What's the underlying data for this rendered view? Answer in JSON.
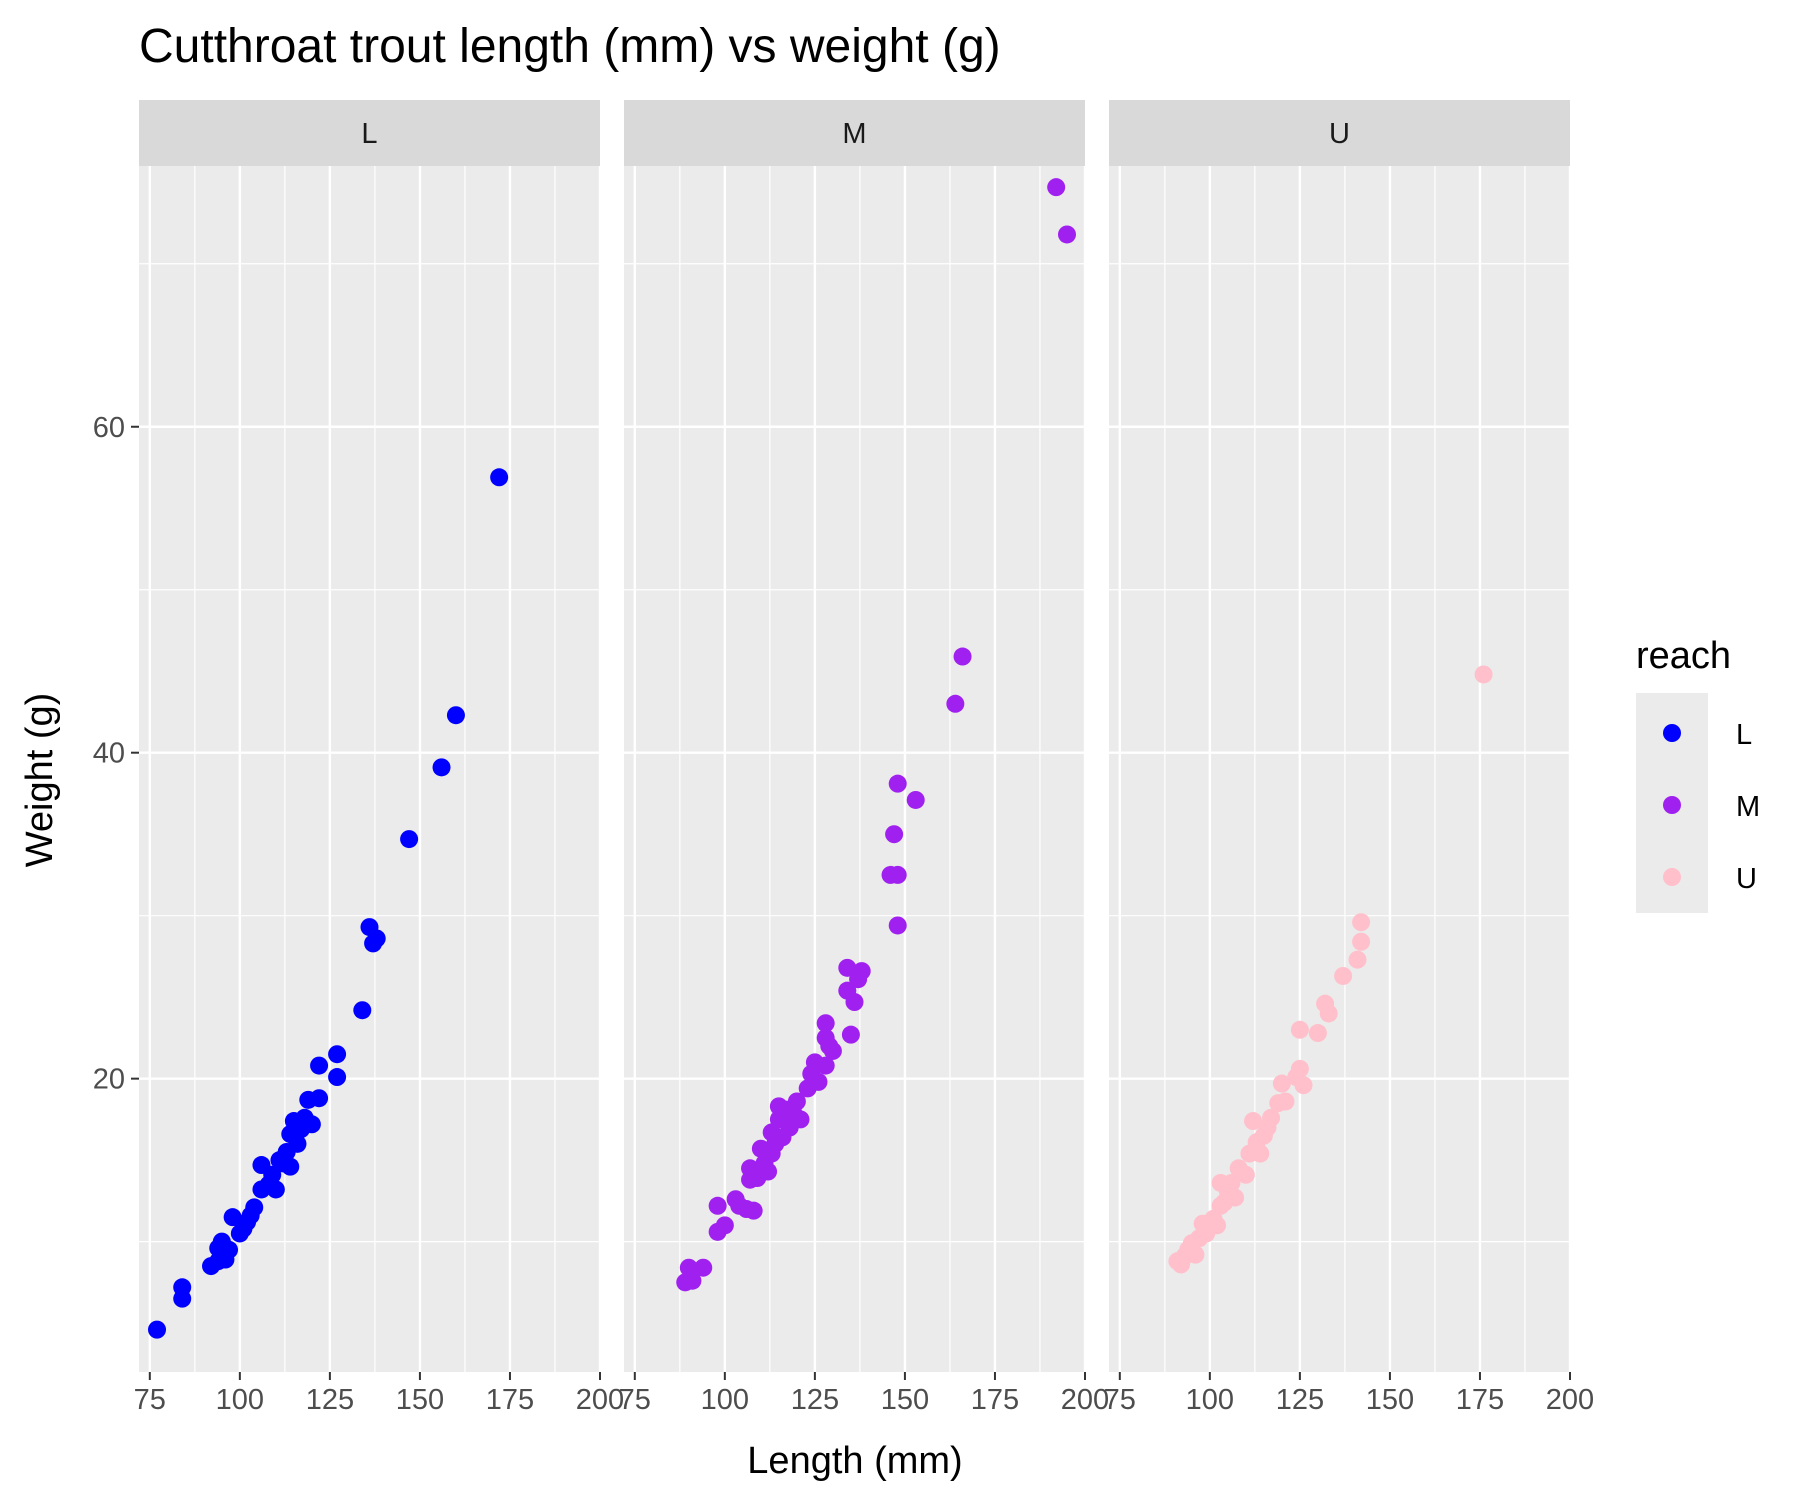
{
  "chart_data": {
    "type": "scatter",
    "title": "Cutthroat trout length (mm) vs weight (g)",
    "xlabel": "Length (mm)",
    "ylabel": "Weight (g)",
    "xlim": [
      72,
      200
    ],
    "ylim": [
      2,
      76
    ],
    "x_ticks": [
      75,
      100,
      125,
      150,
      175,
      200
    ],
    "y_ticks": [
      20,
      40,
      60
    ],
    "grid": true,
    "legend": {
      "title": "reach",
      "position": "right",
      "entries": [
        {
          "label": "L",
          "color": "#0000ff"
        },
        {
          "label": "M",
          "color": "#a020f0"
        },
        {
          "label": "U",
          "color": "#ffc0cb"
        }
      ]
    },
    "series": [
      {
        "name": "L",
        "facet": "L",
        "color": "#0000ff",
        "points": [
          [
            77,
            4.6
          ],
          [
            84,
            6.5
          ],
          [
            84,
            7.2
          ],
          [
            92,
            8.5
          ],
          [
            94,
            8.8
          ],
          [
            94,
            9.6
          ],
          [
            95,
            10.0
          ],
          [
            96,
            8.9
          ],
          [
            97,
            9.5
          ],
          [
            98,
            11.5
          ],
          [
            100,
            10.5
          ],
          [
            101,
            10.8
          ],
          [
            102,
            11.2
          ],
          [
            103,
            11.6
          ],
          [
            104,
            12.1
          ],
          [
            106,
            13.2
          ],
          [
            106,
            14.7
          ],
          [
            108,
            13.5
          ],
          [
            109,
            14.1
          ],
          [
            110,
            13.2
          ],
          [
            111,
            15.0
          ],
          [
            112,
            14.8
          ],
          [
            113,
            15.5
          ],
          [
            114,
            16.6
          ],
          [
            114,
            14.6
          ],
          [
            115,
            17.4
          ],
          [
            116,
            16.0
          ],
          [
            117,
            16.9
          ],
          [
            118,
            17.6
          ],
          [
            119,
            18.7
          ],
          [
            120,
            17.2
          ],
          [
            122,
            18.8
          ],
          [
            122,
            20.8
          ],
          [
            127,
            20.1
          ],
          [
            127,
            21.5
          ],
          [
            134,
            24.2
          ],
          [
            136,
            29.3
          ],
          [
            137,
            28.3
          ],
          [
            138,
            28.6
          ],
          [
            147,
            34.7
          ],
          [
            156,
            39.1
          ],
          [
            160,
            42.3
          ],
          [
            172,
            56.9
          ]
        ]
      },
      {
        "name": "M",
        "facet": "M",
        "color": "#a020f0",
        "points": [
          [
            89,
            7.5
          ],
          [
            90,
            8.4
          ],
          [
            91,
            7.6
          ],
          [
            94,
            8.4
          ],
          [
            98,
            10.6
          ],
          [
            98,
            12.2
          ],
          [
            100,
            11.0
          ],
          [
            103,
            12.6
          ],
          [
            104,
            12.2
          ],
          [
            106,
            12.0
          ],
          [
            107,
            13.8
          ],
          [
            107,
            14.5
          ],
          [
            108,
            11.9
          ],
          [
            109,
            13.9
          ],
          [
            110,
            15.7
          ],
          [
            111,
            14.8
          ],
          [
            112,
            14.3
          ],
          [
            113,
            15.4
          ],
          [
            113,
            16.7
          ],
          [
            114,
            16.0
          ],
          [
            115,
            17.5
          ],
          [
            115,
            18.3
          ],
          [
            116,
            16.4
          ],
          [
            117,
            18.1
          ],
          [
            118,
            17.0
          ],
          [
            119,
            17.9
          ],
          [
            120,
            18.6
          ],
          [
            121,
            17.5
          ],
          [
            123,
            19.4
          ],
          [
            124,
            20.3
          ],
          [
            125,
            21.0
          ],
          [
            126,
            19.8
          ],
          [
            128,
            20.8
          ],
          [
            128,
            22.5
          ],
          [
            128,
            23.4
          ],
          [
            129,
            22.0
          ],
          [
            130,
            21.7
          ],
          [
            134,
            26.8
          ],
          [
            134,
            25.4
          ],
          [
            135,
            22.7
          ],
          [
            136,
            24.7
          ],
          [
            137,
            26.1
          ],
          [
            138,
            26.6
          ],
          [
            146,
            32.5
          ],
          [
            147,
            35.0
          ],
          [
            148,
            38.1
          ],
          [
            148,
            32.5
          ],
          [
            148,
            29.4
          ],
          [
            153,
            37.1
          ],
          [
            164,
            43.0
          ],
          [
            166,
            45.9
          ],
          [
            192,
            74.7
          ],
          [
            195,
            71.8
          ]
        ]
      },
      {
        "name": "U",
        "facet": "U",
        "color": "#ffc0cb",
        "points": [
          [
            91,
            8.8
          ],
          [
            92,
            8.6
          ],
          [
            93,
            9.1
          ],
          [
            94,
            9.5
          ],
          [
            95,
            9.9
          ],
          [
            96,
            9.2
          ],
          [
            97,
            10.2
          ],
          [
            98,
            11.1
          ],
          [
            99,
            10.5
          ],
          [
            100,
            10.9
          ],
          [
            101,
            11.4
          ],
          [
            102,
            11.0
          ],
          [
            103,
            12.2
          ],
          [
            103,
            13.6
          ],
          [
            104,
            12.4
          ],
          [
            105,
            13.1
          ],
          [
            106,
            13.6
          ],
          [
            107,
            12.7
          ],
          [
            108,
            14.5
          ],
          [
            110,
            14.1
          ],
          [
            111,
            15.4
          ],
          [
            112,
            17.4
          ],
          [
            113,
            16.1
          ],
          [
            114,
            15.4
          ],
          [
            115,
            16.5
          ],
          [
            116,
            17.0
          ],
          [
            117,
            17.6
          ],
          [
            119,
            18.5
          ],
          [
            120,
            19.7
          ],
          [
            121,
            18.6
          ],
          [
            124,
            20.1
          ],
          [
            125,
            23.0
          ],
          [
            125,
            20.6
          ],
          [
            126,
            19.6
          ],
          [
            130,
            22.8
          ],
          [
            132,
            24.6
          ],
          [
            133,
            24.0
          ],
          [
            137,
            26.3
          ],
          [
            141,
            27.3
          ],
          [
            142,
            28.4
          ],
          [
            142,
            29.6
          ],
          [
            176,
            44.8
          ]
        ]
      }
    ]
  }
}
